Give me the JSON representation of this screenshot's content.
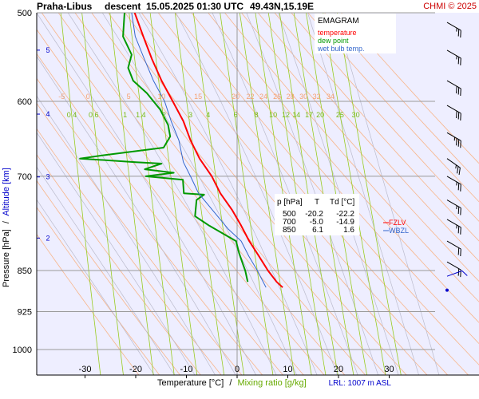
{
  "header": {
    "station": "Praha-Libus",
    "mode": "descent",
    "datetime": "15.05.2025 01:30 UTC",
    "coords": "49.43N,15.19E",
    "copyright": "CHMI © 2025"
  },
  "legend": {
    "title": "EMAGRAM",
    "items": [
      {
        "label": "temperature",
        "color": "#ff0000"
      },
      {
        "label": "dew point",
        "color": "#009900"
      },
      {
        "label": "wet bulb temp.",
        "color": "#3366cc"
      }
    ]
  },
  "table": {
    "headers": [
      "p [hPa]",
      "T",
      "Td [°C]"
    ],
    "rows": [
      [
        "500",
        "-20.2",
        "-22.2"
      ],
      [
        "700",
        "-5.0",
        "-14.9"
      ],
      [
        "850",
        "6.1",
        "1.6"
      ]
    ]
  },
  "levels": [
    {
      "label": "FZLV",
      "color": "#ff0000"
    },
    {
      "label": "WBZL",
      "color": "#3366cc"
    }
  ],
  "axes": {
    "ylabel_pressure": "Pressure [hPa]",
    "ylabel_sep": "/",
    "ylabel_altitude": "Altitude [km]",
    "xlabel_temp": "Temperature [°C]",
    "xlabel_sep": "/",
    "xlabel_mix": "Mixing ratio [g/kg]"
  },
  "footer": {
    "lrl": "LRL: 1007 m ASL"
  },
  "chart_data": {
    "type": "line",
    "title": "Praha-Libus descent 15.05.2025 01:30 UTC 49.43N,15.19E",
    "xlim": [
      -40,
      40
    ],
    "ylim": [
      1050,
      500
    ],
    "yscale": "log",
    "pressure_ticks": [
      500,
      600,
      700,
      850,
      925,
      1000
    ],
    "pressure_tick_labels": [
      "500",
      "600",
      "700",
      "850",
      "925",
      "1000"
    ],
    "temp_ticks": [
      -30,
      -20,
      -10,
      0,
      10,
      20,
      30
    ],
    "temp_tick_labels": [
      "-30",
      "-20",
      "-10",
      "0",
      "10",
      "20",
      "30"
    ],
    "altitude_ticks": [
      {
        "km": 2,
        "p": 795
      },
      {
        "km": 3,
        "p": 701
      },
      {
        "km": 4,
        "p": 616
      },
      {
        "km": 5,
        "p": 540
      }
    ],
    "altitude_tick_labels": [
      "2",
      "3",
      "4",
      "5"
    ],
    "isotherm_labels": [
      {
        "label": "-5",
        "t": -34.6
      },
      {
        "label": "0",
        "t": -29.4
      },
      {
        "label": "5",
        "t": -21.4
      },
      {
        "label": "10",
        "t": -14.9
      },
      {
        "label": "15",
        "t": -7.7
      },
      {
        "label": "20",
        "t": -0.3
      },
      {
        "label": "22",
        "t": 2.6
      },
      {
        "label": "24",
        "t": 5.2
      },
      {
        "label": "26",
        "t": 7.9
      },
      {
        "label": "28",
        "t": 10.5
      },
      {
        "label": "30",
        "t": 13.1
      },
      {
        "label": "32",
        "t": 15.7
      },
      {
        "label": "34",
        "t": 18.4
      }
    ],
    "isotherm_label_p": 600,
    "mixing_ratio_labels": [
      {
        "label": "0.4",
        "t": -32.6
      },
      {
        "label": "0.6",
        "t": -28.3
      },
      {
        "label": "1",
        "t": -22.1
      },
      {
        "label": "1.4",
        "t": -19.0
      },
      {
        "label": "2",
        "t": -14.4
      },
      {
        "label": "3",
        "t": -9.2
      },
      {
        "label": "4",
        "t": -5.7
      },
      {
        "label": "6",
        "t": -0.3
      },
      {
        "label": "8",
        "t": 3.8
      },
      {
        "label": "10",
        "t": 7.1
      },
      {
        "label": "12",
        "t": 9.6
      },
      {
        "label": "14",
        "t": 11.7
      },
      {
        "label": "17",
        "t": 14.2
      },
      {
        "label": "20",
        "t": 16.4
      },
      {
        "label": "25",
        "t": 20.3
      },
      {
        "label": "30",
        "t": 23.4
      }
    ],
    "mixing_ratio_label_p": 617,
    "series": [
      {
        "name": "temperature",
        "color": "#ff0000",
        "points": [
          [
            -20.2,
            500
          ],
          [
            -18.5,
            525
          ],
          [
            -16.8,
            550
          ],
          [
            -14.9,
            575
          ],
          [
            -12.7,
            600
          ],
          [
            -10.6,
            625
          ],
          [
            -9.2,
            650
          ],
          [
            -7.4,
            675
          ],
          [
            -5.0,
            700
          ],
          [
            -3.3,
            725
          ],
          [
            -1.0,
            750
          ],
          [
            0.8,
            775
          ],
          [
            2.4,
            800
          ],
          [
            4.3,
            825
          ],
          [
            6.1,
            850
          ],
          [
            7.8,
            870
          ],
          [
            9.0,
            880
          ]
        ]
      },
      {
        "name": "dew point",
        "color": "#009900",
        "points": [
          [
            -22.2,
            500
          ],
          [
            -22.5,
            525
          ],
          [
            -20.8,
            545
          ],
          [
            -21.5,
            560
          ],
          [
            -20.5,
            575
          ],
          [
            -17.8,
            590
          ],
          [
            -15.2,
            610
          ],
          [
            -13.6,
            630
          ],
          [
            -13.2,
            645
          ],
          [
            -14.5,
            660
          ],
          [
            -26.0,
            670
          ],
          [
            -31.0,
            675
          ],
          [
            -20.0,
            680
          ],
          [
            -14.9,
            682
          ],
          [
            -18.2,
            690
          ],
          [
            -12.5,
            695
          ],
          [
            -18.0,
            700
          ],
          [
            -10.7,
            705
          ],
          [
            -10.5,
            725
          ],
          [
            -6.5,
            727
          ],
          [
            -8.0,
            735
          ],
          [
            -8.3,
            760
          ],
          [
            -5.5,
            775
          ],
          [
            -2.3,
            790
          ],
          [
            -0.2,
            800
          ],
          [
            0.4,
            820
          ],
          [
            1.2,
            840
          ],
          [
            1.6,
            850
          ],
          [
            2.1,
            870
          ]
        ]
      },
      {
        "name": "wet bulb temp.",
        "color": "#3366cc",
        "points": [
          [
            -20.8,
            500
          ],
          [
            -20.1,
            525
          ],
          [
            -18.3,
            550
          ],
          [
            -16.5,
            575
          ],
          [
            -14.3,
            600
          ],
          [
            -13.0,
            625
          ],
          [
            -11.5,
            650
          ],
          [
            -10.6,
            680
          ],
          [
            -9.2,
            700
          ],
          [
            -7.6,
            725
          ],
          [
            -4.9,
            750
          ],
          [
            -1.8,
            780
          ],
          [
            0.8,
            800
          ],
          [
            2.3,
            825
          ],
          [
            4.0,
            850
          ],
          [
            5.7,
            880
          ]
        ]
      }
    ],
    "wind_barbs": [
      {
        "p": 510,
        "dir": 300,
        "speed_kt": 25
      },
      {
        "p": 540,
        "dir": 300,
        "speed_kt": 25
      },
      {
        "p": 575,
        "dir": 300,
        "speed_kt": 30
      },
      {
        "p": 605,
        "dir": 300,
        "speed_kt": 30
      },
      {
        "p": 640,
        "dir": 300,
        "speed_kt": 35
      },
      {
        "p": 675,
        "dir": 305,
        "speed_kt": 25
      },
      {
        "p": 700,
        "dir": 300,
        "speed_kt": 25
      },
      {
        "p": 735,
        "dir": 300,
        "speed_kt": 25
      },
      {
        "p": 765,
        "dir": 300,
        "speed_kt": 25
      },
      {
        "p": 800,
        "dir": 300,
        "speed_kt": 20
      },
      {
        "p": 835,
        "dir": 300,
        "speed_kt": 20
      },
      {
        "p": 860,
        "dir": 250,
        "speed_kt": 10
      },
      {
        "p": 885,
        "dir": 300,
        "speed_kt": 0
      }
    ]
  }
}
